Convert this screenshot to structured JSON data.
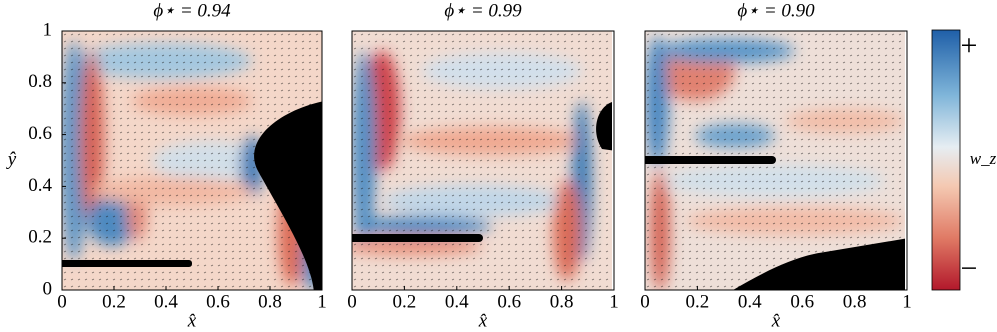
{
  "chart_data": [
    {
      "type": "field",
      "title": "ϕ⋆ = 0.94",
      "xlabel": "x̂",
      "ylabel": "ŷ",
      "xlim": [
        0,
        1
      ],
      "ylim": [
        0,
        1
      ],
      "xticks": [
        0,
        0.2,
        0.4,
        0.6,
        0.8,
        1
      ],
      "yticks": [
        0,
        0.2,
        0.4,
        0.6,
        0.8,
        1
      ]
    },
    {
      "type": "field",
      "title": "ϕ⋆ = 0.99",
      "xlabel": "x̂",
      "xlim": [
        0,
        1
      ],
      "ylim": [
        0,
        1
      ],
      "xticks": [
        0,
        0.2,
        0.4,
        0.6,
        0.8,
        1
      ]
    },
    {
      "type": "field",
      "title": "ϕ⋆ = 0.90",
      "xlabel": "x̂",
      "xlim": [
        0,
        1
      ],
      "ylim": [
        0,
        1
      ],
      "xticks": [
        0,
        0.2,
        0.4,
        0.6,
        0.8,
        1
      ]
    }
  ],
  "colorbar": {
    "label": "w_z",
    "max_label": "+",
    "min_label": "−"
  }
}
